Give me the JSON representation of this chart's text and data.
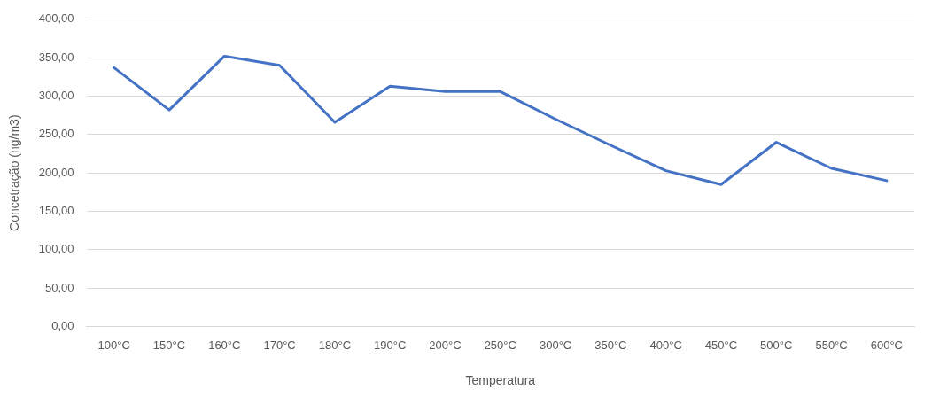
{
  "chart_data": {
    "type": "line",
    "xlabel": "Temperatura",
    "ylabel": "Concetração (ng/m3)",
    "categories": [
      "100°C",
      "150°C",
      "160°C",
      "170°C",
      "180°C",
      "190°C",
      "200°C",
      "250°C",
      "300°C",
      "350°C",
      "400°C",
      "450°C",
      "500°C",
      "550°C",
      "600°C"
    ],
    "series": [
      {
        "color": "#4472c4",
        "values": [
          337,
          282,
          352,
          340,
          266,
          313,
          306,
          306,
          270,
          236,
          203,
          185,
          240,
          206,
          190
        ]
      }
    ],
    "ylim": [
      0,
      400
    ],
    "yticks": [
      {
        "value": 0,
        "label": "0,00"
      },
      {
        "value": 50,
        "label": "50,00"
      },
      {
        "value": 100,
        "label": "100,00"
      },
      {
        "value": 150,
        "label": "150,00"
      },
      {
        "value": 200,
        "label": "200,00"
      },
      {
        "value": 250,
        "label": "250,00"
      },
      {
        "value": 300,
        "label": "300,00"
      },
      {
        "value": 350,
        "label": "350,00"
      },
      {
        "value": 400,
        "label": "400,00"
      }
    ],
    "grid": "y",
    "legend": false,
    "marker": "none",
    "line_style": "solid"
  }
}
